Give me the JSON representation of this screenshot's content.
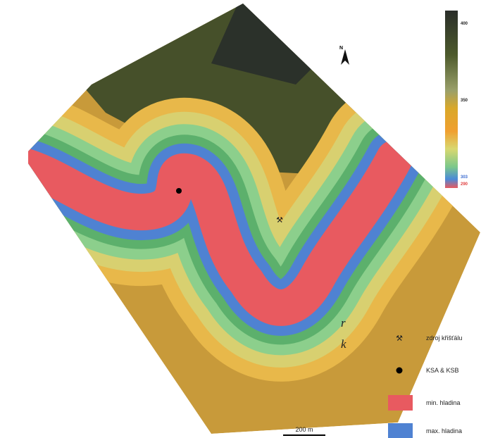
{
  "map": {
    "north_label": "N",
    "colorbar": {
      "labels": [
        "400",
        "350",
        "303",
        "290"
      ]
    },
    "scale_bar": "200 m",
    "side_text": [
      "r",
      "k"
    ],
    "legend": [
      {
        "label": "zdroj křišťálu"
      },
      {
        "label": "KSA & KSB"
      },
      {
        "label": "min. hladina"
      },
      {
        "label": "max. hladina"
      }
    ]
  }
}
